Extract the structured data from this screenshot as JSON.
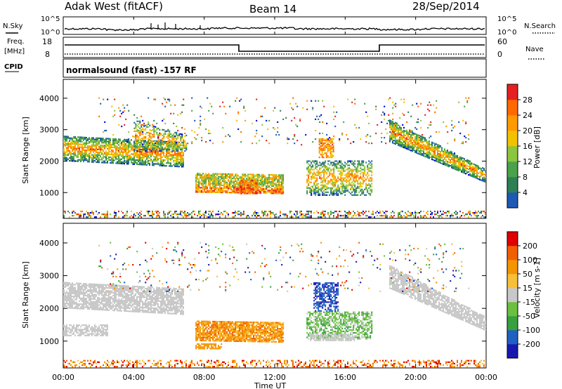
{
  "header": {
    "title": "Adak West (fitACF)",
    "beam": "Beam 14",
    "date": "28/Sep/2014"
  },
  "labels": {
    "nsky": "N.Sky",
    "nsearch": "N.Search",
    "freq_line1": "Freq.",
    "freq_line2": "[MHz]",
    "cpid": "CPID",
    "nave": "Nave",
    "program": "normalsound (fast) -157 RF",
    "nsky_tick_hi": "10^5",
    "nsky_tick_lo": "10^0",
    "nsearch_tick_hi": "10^5",
    "nsearch_tick_lo": "10^0",
    "freq_tick_hi": "18",
    "freq_tick_lo": "8",
    "nave_tick_hi": "60",
    "nave_tick_lo": "0"
  },
  "colors": {
    "power": [
      "#0000d8",
      "#1e5ab4",
      "#2f7f55",
      "#4aa24a",
      "#8cc63f",
      "#f2c200",
      "#ff9a00",
      "#ff6a00",
      "#e62020"
    ],
    "velocity": [
      "#e00000",
      "#f06000",
      "#f49400",
      "#f7bf3a",
      "#c8c8c8",
      "#6cc040",
      "#38a040",
      "#2060c0",
      "#1818b0"
    ]
  },
  "chart_data": [
    {
      "type": "heatmap",
      "name": "power",
      "ylabel": "Slant Range [km]",
      "xlabel": "Time UT",
      "colorbar_label": "Power [dB]",
      "colorbar_ticks": [
        "4",
        "8",
        "12",
        "16",
        "20",
        "24",
        "28"
      ],
      "x_ticks": [
        "00:00",
        "04:00",
        "08:00",
        "12:00",
        "16:00",
        "20:00",
        "00:00"
      ],
      "y_ticks": [
        "1000",
        "2000",
        "3000",
        "4000"
      ],
      "xlim_hours": [
        0,
        24
      ],
      "ylim_km": [
        180,
        4600
      ],
      "value_range": [
        0,
        30
      ]
    },
    {
      "type": "heatmap",
      "name": "velocity",
      "ylabel": "Slant Range [km]",
      "xlabel": "Time UT",
      "colorbar_label": "Velocity [m s-1]",
      "colorbar_ticks": [
        "200",
        "100",
        "50",
        "15",
        "-15",
        "-50",
        "-100",
        "-200"
      ],
      "x_ticks": [
        "00:00",
        "04:00",
        "08:00",
        "12:00",
        "16:00",
        "20:00",
        "00:00"
      ],
      "y_ticks": [
        "1000",
        "2000",
        "3000",
        "4000"
      ],
      "xlim_hours": [
        0,
        24
      ],
      "ylim_km": [
        180,
        4600
      ],
      "value_range": [
        -250,
        250
      ]
    }
  ]
}
